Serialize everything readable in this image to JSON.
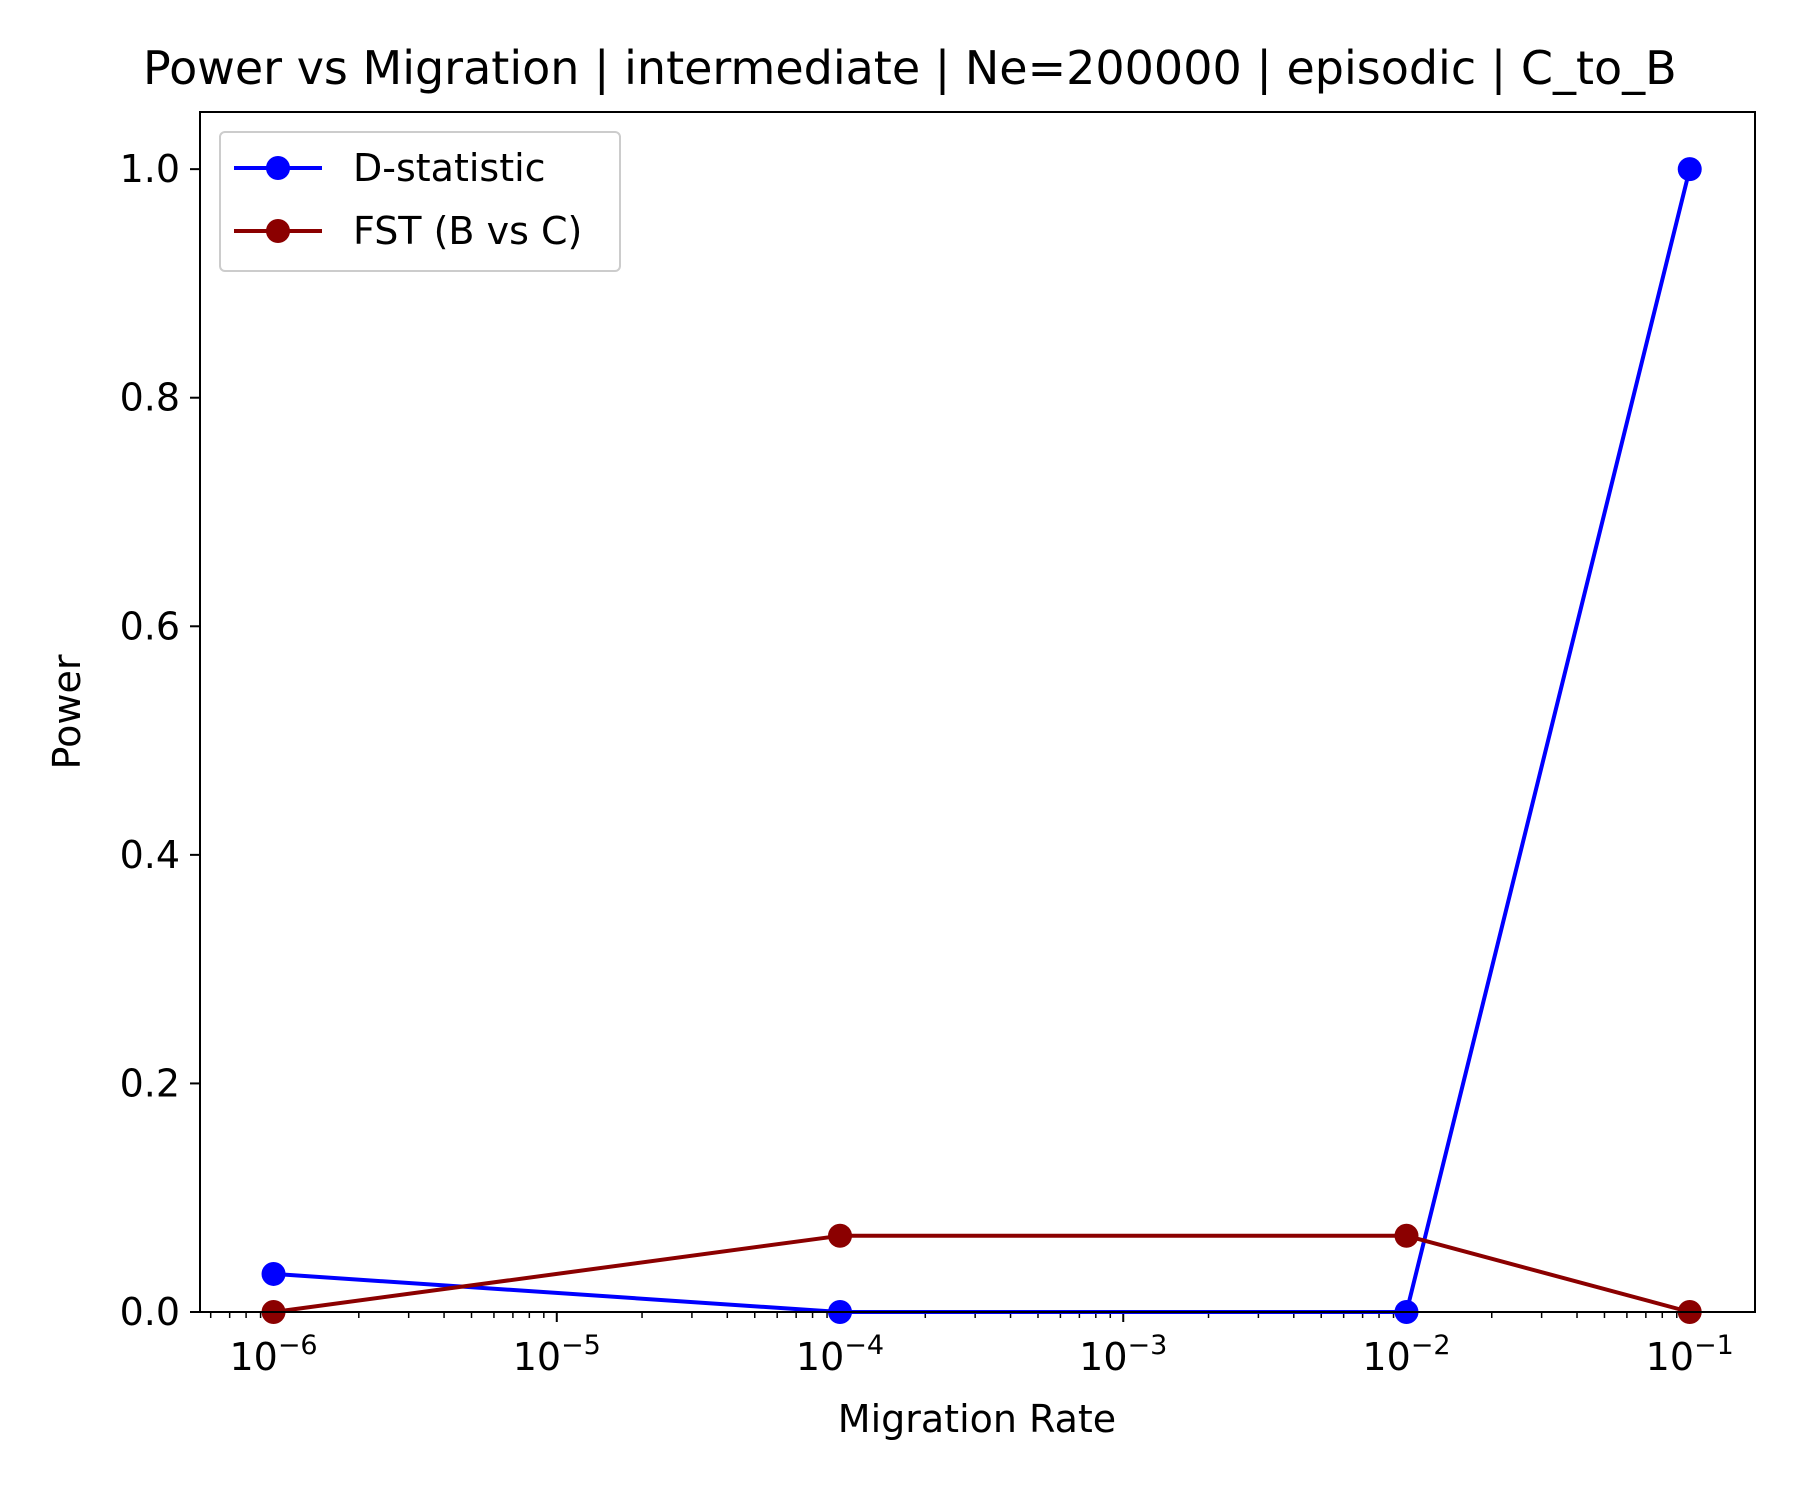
{
  "chart_data": {
    "type": "line",
    "title": "Power vs Migration | intermediate | Ne=200000 | episodic | C_to_B",
    "xlabel": "Migration Rate",
    "ylabel": "Power",
    "xscale": "log",
    "xlim": [
      5.5e-07,
      0.17
    ],
    "ylim": [
      0,
      1.05
    ],
    "x_ticks": [
      {
        "base": "10",
        "exp": "−6",
        "value": 1e-06
      },
      {
        "base": "10",
        "exp": "−5",
        "value": 1e-05
      },
      {
        "base": "10",
        "exp": "−4",
        "value": 0.0001
      },
      {
        "base": "10",
        "exp": "−3",
        "value": 0.001
      },
      {
        "base": "10",
        "exp": "−2",
        "value": 0.01
      },
      {
        "base": "10",
        "exp": "−1",
        "value": 0.1
      }
    ],
    "y_ticks": [
      {
        "label": "0.0",
        "value": 0.0
      },
      {
        "label": "0.2",
        "value": 0.2
      },
      {
        "label": "0.4",
        "value": 0.4
      },
      {
        "label": "0.6",
        "value": 0.6
      },
      {
        "label": "0.8",
        "value": 0.8
      },
      {
        "label": "1.0",
        "value": 1.0
      }
    ],
    "grid": false,
    "legend_position": "upper-left",
    "x": [
      1e-06,
      0.0001,
      0.01,
      0.1
    ],
    "series": [
      {
        "name": "D-statistic",
        "color": "#0000ff",
        "values": [
          0.0333,
          0.0,
          0.0,
          1.0
        ]
      },
      {
        "name": "FST (B vs C)",
        "color": "#8b0000",
        "values": [
          0.0,
          0.0667,
          0.0667,
          0.0
        ]
      }
    ]
  }
}
